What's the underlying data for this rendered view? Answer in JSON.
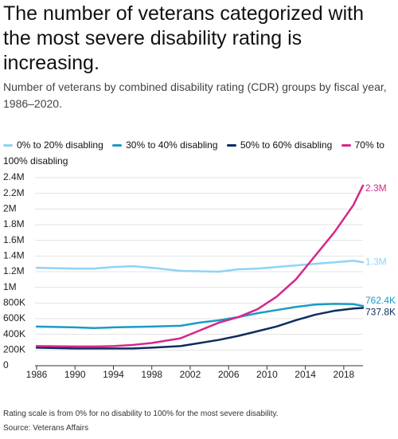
{
  "chart_data": {
    "type": "line",
    "title": "The number of veterans categorized with the most severe disability rating is increasing.",
    "subtitle": "Number of veterans by combined disability rating (CDR) groups by fiscal year, 1986–2020.",
    "note": "Rating scale is from 0% for no disability to 100% for the most severe disability.",
    "source": "Source: Veterans Affairs",
    "x": [
      1986,
      1990,
      1992,
      1994,
      1996,
      1998,
      2001,
      2003,
      2005,
      2007,
      2009,
      2011,
      2013,
      2015,
      2017,
      2019,
      2020
    ],
    "xlim": [
      1986,
      2020
    ],
    "xticks": [
      1986,
      1990,
      1994,
      1998,
      2002,
      2006,
      2010,
      2014,
      2018
    ],
    "ylim": [
      0,
      2400000
    ],
    "yticks": [
      {
        "value": 0,
        "label": "0"
      },
      {
        "value": 200000,
        "label": "200K"
      },
      {
        "value": 400000,
        "label": "400K"
      },
      {
        "value": 600000,
        "label": "600K"
      },
      {
        "value": 800000,
        "label": "800K"
      },
      {
        "value": 1000000,
        "label": "1M"
      },
      {
        "value": 1200000,
        "label": "1.2M"
      },
      {
        "value": 1400000,
        "label": "1.4M"
      },
      {
        "value": 1600000,
        "label": "1.6M"
      },
      {
        "value": 1800000,
        "label": "1.8M"
      },
      {
        "value": 2000000,
        "label": "2M"
      },
      {
        "value": 2200000,
        "label": "2.2M"
      },
      {
        "value": 2400000,
        "label": "2.4M"
      }
    ],
    "grid": true,
    "series": [
      {
        "name": "0% to 20% disabling",
        "color": "#8fd3f5",
        "values": [
          1250000,
          1240000,
          1240000,
          1260000,
          1270000,
          1250000,
          1210000,
          1205000,
          1200000,
          1230000,
          1240000,
          1260000,
          1280000,
          1300000,
          1320000,
          1340000,
          1320000
        ],
        "value_labels": [
          null,
          null,
          null,
          null,
          null,
          null,
          null,
          null,
          null,
          null,
          null,
          null,
          null,
          null,
          null,
          null,
          "1.3M"
        ]
      },
      {
        "name": "30% to 40% disabling",
        "color": "#1a9bc7",
        "values": [
          500000,
          490000,
          480000,
          490000,
          495000,
          500000,
          510000,
          550000,
          580000,
          620000,
          670000,
          710000,
          750000,
          780000,
          790000,
          785000,
          762400
        ],
        "value_labels": [
          null,
          null,
          null,
          null,
          null,
          null,
          null,
          null,
          null,
          null,
          null,
          null,
          null,
          null,
          null,
          null,
          "762.4K"
        ]
      },
      {
        "name": "50% to 60% disabling",
        "color": "#0d2d5e",
        "values": [
          230000,
          220000,
          220000,
          220000,
          220000,
          230000,
          250000,
          290000,
          330000,
          380000,
          440000,
          500000,
          580000,
          650000,
          700000,
          730000,
          737800
        ],
        "value_labels": [
          null,
          null,
          null,
          null,
          null,
          null,
          null,
          null,
          null,
          null,
          null,
          null,
          null,
          null,
          null,
          null,
          "737.8K"
        ]
      },
      {
        "name": "70% to 100% disabling",
        "color": "#d6278a",
        "values": [
          250000,
          245000,
          245000,
          250000,
          265000,
          290000,
          350000,
          450000,
          550000,
          620000,
          720000,
          880000,
          1100000,
          1400000,
          1700000,
          2050000,
          2300000
        ],
        "value_labels": [
          null,
          null,
          null,
          null,
          null,
          null,
          null,
          null,
          null,
          null,
          null,
          null,
          null,
          null,
          null,
          null,
          "2.3M"
        ]
      }
    ]
  }
}
